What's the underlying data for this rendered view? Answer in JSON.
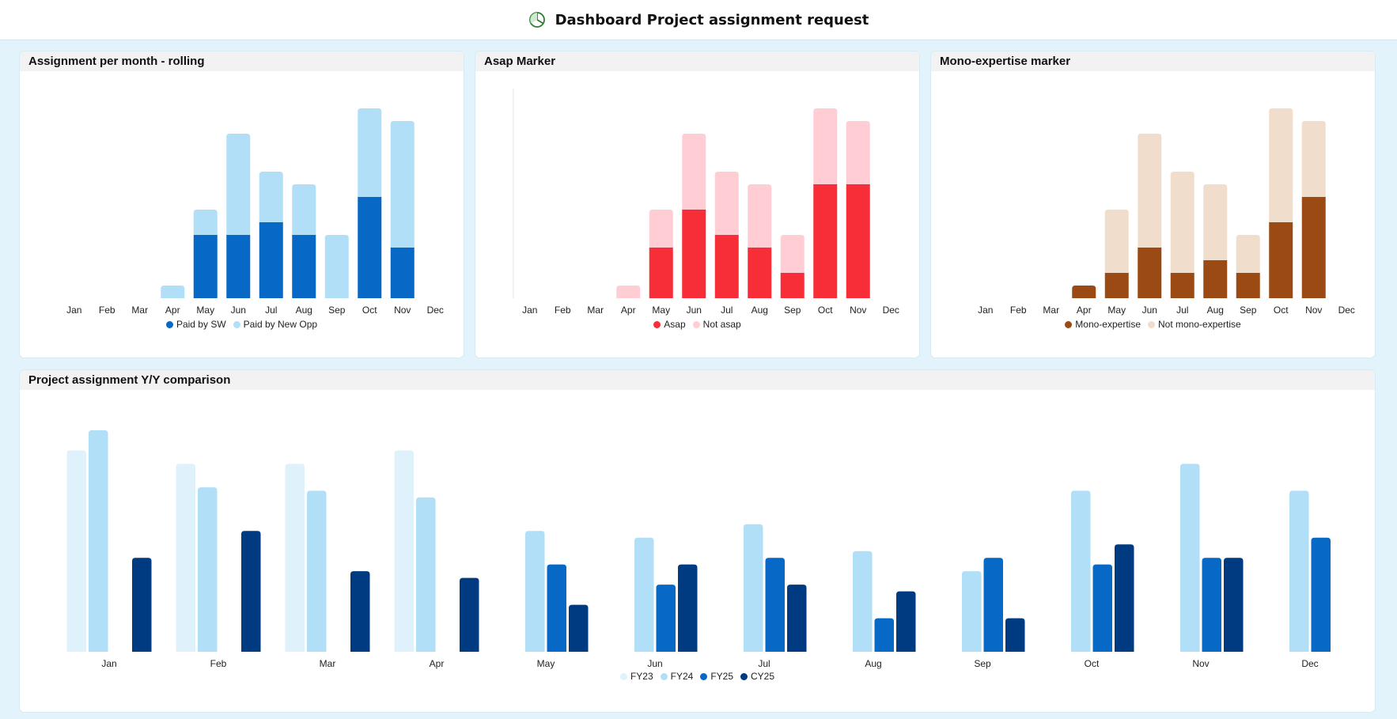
{
  "header": {
    "title": "Dashboard Project assignment request",
    "icon": "pie-chart-icon"
  },
  "chart_data": [
    {
      "id": "chart1",
      "type": "bar",
      "stacked": true,
      "title": "Assignment per month - rolling",
      "categories": [
        "Jan",
        "Feb",
        "Mar",
        "Apr",
        "May",
        "Jun",
        "Jul",
        "Aug",
        "Sep",
        "Oct",
        "Nov",
        "Dec"
      ],
      "series": [
        {
          "name": "Paid by SW",
          "color": "#0868c6",
          "values": [
            0,
            0,
            0,
            0,
            5,
            5,
            6,
            5,
            0,
            8,
            4,
            0
          ]
        },
        {
          "name": "Paid by New Opp",
          "color": "#b2dff8",
          "values": [
            0,
            0,
            0,
            1,
            2,
            8,
            4,
            4,
            5,
            7,
            10,
            0
          ]
        }
      ],
      "ylim": [
        0,
        16
      ],
      "legend": "bottom-center"
    },
    {
      "id": "chart2",
      "type": "bar",
      "stacked": true,
      "title": "Asap Marker",
      "categories": [
        "Jan",
        "Feb",
        "Mar",
        "Apr",
        "May",
        "Jun",
        "Jul",
        "Aug",
        "Sep",
        "Oct",
        "Nov",
        "Dec"
      ],
      "series": [
        {
          "name": "Asap",
          "color": "#f72d37",
          "values": [
            0,
            0,
            0,
            0,
            4,
            7,
            5,
            4,
            2,
            9,
            9,
            0
          ]
        },
        {
          "name": "Not asap",
          "color": "#ffcdd3",
          "values": [
            0,
            0,
            0,
            1,
            3,
            6,
            5,
            5,
            3,
            6,
            5,
            0
          ]
        }
      ],
      "ylim": [
        0,
        16
      ],
      "legend": "bottom-center"
    },
    {
      "id": "chart3",
      "type": "bar",
      "stacked": true,
      "title": "Mono-expertise marker",
      "categories": [
        "Jan",
        "Feb",
        "Mar",
        "Apr",
        "May",
        "Jun",
        "Jul",
        "Aug",
        "Sep",
        "Oct",
        "Nov",
        "Dec"
      ],
      "series": [
        {
          "name": "Mono-expertise",
          "color": "#9b4a14",
          "values": [
            0,
            0,
            0,
            1,
            2,
            4,
            2,
            3,
            2,
            6,
            8,
            0
          ]
        },
        {
          "name": "Not mono-expertise",
          "color": "#f0ddcc",
          "values": [
            0,
            0,
            0,
            0,
            5,
            9,
            8,
            6,
            3,
            9,
            6,
            0
          ]
        }
      ],
      "ylim": [
        0,
        16
      ],
      "legend": "bottom-center"
    },
    {
      "id": "chart4",
      "type": "bar",
      "stacked": false,
      "title": "Project assignment Y/Y comparison",
      "categories": [
        "Jan",
        "Feb",
        "Mar",
        "Apr",
        "May",
        "Jun",
        "Jul",
        "Aug",
        "Sep",
        "Oct",
        "Nov",
        "Dec"
      ],
      "series": [
        {
          "name": "FY23",
          "color": "#dff2fc",
          "values": [
            30,
            28,
            28,
            30,
            null,
            null,
            null,
            null,
            null,
            null,
            null,
            null
          ]
        },
        {
          "name": "FY24",
          "color": "#b2dff8",
          "values": [
            33,
            24.5,
            24,
            23,
            18,
            17,
            19,
            15,
            12,
            24,
            28,
            24
          ]
        },
        {
          "name": "FY25",
          "color": "#0868c6",
          "values": [
            null,
            null,
            null,
            null,
            13,
            10,
            14,
            5,
            14,
            13,
            14,
            17
          ]
        },
        {
          "name": "CY25",
          "color": "#003a80",
          "values": [
            14,
            18,
            12,
            11,
            7,
            13,
            10,
            9,
            5,
            16,
            14,
            null
          ]
        }
      ],
      "ylim": [
        0,
        35
      ],
      "legend": "bottom-center"
    }
  ]
}
